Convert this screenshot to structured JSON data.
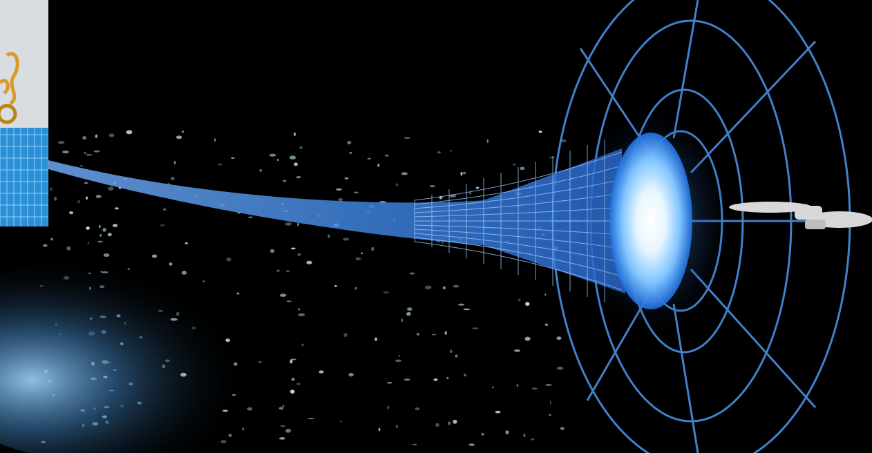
{
  "scene": {
    "subject": "wormhole-illustration",
    "colors": {
      "background": "#000000",
      "grid": "#4a8fe0",
      "glow_core": "#ffffff",
      "glow_mid": "#7fc4ff",
      "glow_outer": "#1f6fe0",
      "ship": "#d8d8d8",
      "inset_floor": "#2b8fd6",
      "inset_wall": "#d9dde2",
      "inset_ornament": "#d89a2a"
    },
    "icons": {
      "wormhole": "wormhole-mouth",
      "ship": "starship-icon",
      "ornament": "gold-ornament-icon"
    }
  }
}
